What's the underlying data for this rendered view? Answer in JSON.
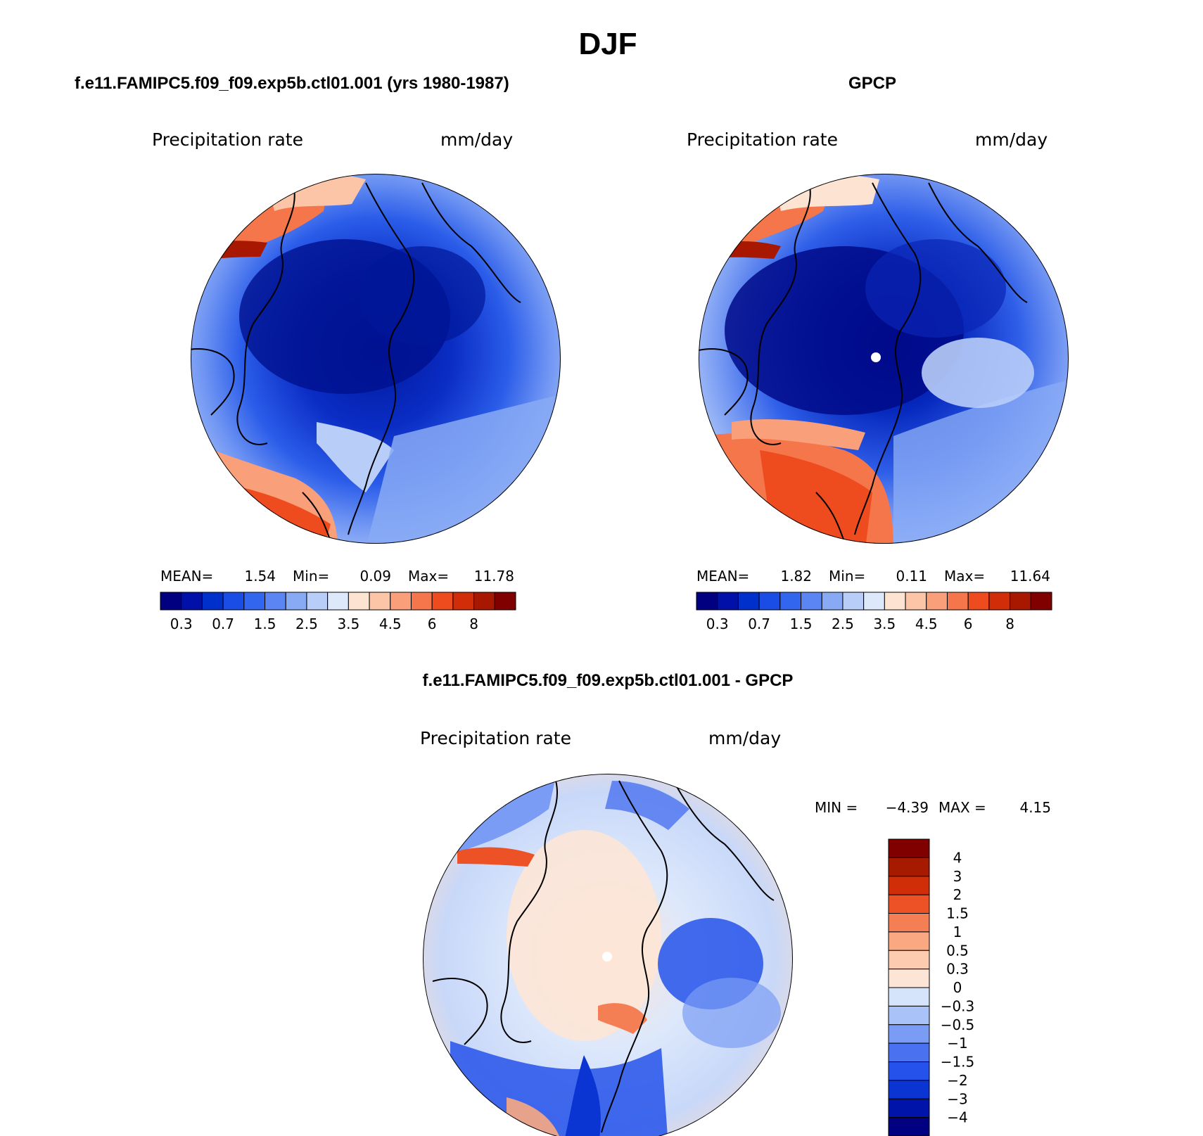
{
  "figure": {
    "title": "DJF"
  },
  "panels": {
    "model": {
      "title": "f.e11.FAMIPC5.f09_f09.exp5b.ctl01.001 (yrs 1980-1987)",
      "variable": "Precipitation rate",
      "units": "mm/day",
      "mean_label": "MEAN=",
      "mean": "1.54",
      "min_label": "Min=",
      "min": "0.09",
      "max_label": "Max=",
      "max": "11.78"
    },
    "obs": {
      "title": "GPCP",
      "variable": "Precipitation rate",
      "units": "mm/day",
      "mean_label": "MEAN=",
      "mean": "1.82",
      "min_label": "Min=",
      "min": "0.11",
      "max_label": "Max=",
      "max": "11.64"
    },
    "diff": {
      "title": "f.e11.FAMIPC5.f09_f09.exp5b.ctl01.001 - GPCP",
      "variable": "Precipitation rate",
      "units": "mm/day",
      "min_label": "MIN =",
      "min": "−4.39",
      "max_label": "MAX =",
      "max": "4.15"
    }
  },
  "chart_data": [
    {
      "type": "heatmap",
      "projection": "north-polar-stereographic",
      "title": "f.e11.FAMIPC5.f09_f09.exp5b.ctl01.001 (yrs 1980-1987)",
      "units": "mm/day",
      "legend_ticks": [
        "0.3",
        "0.7",
        "1.5",
        "2.5",
        "3.5",
        "4.5",
        "6",
        "8"
      ],
      "levels": [
        0.2,
        0.3,
        0.5,
        0.7,
        1,
        1.5,
        2,
        2.5,
        3,
        3.5,
        4,
        4.5,
        5,
        6,
        7,
        8
      ],
      "colors": [
        "#000080",
        "#0010a8",
        "#0030cc",
        "#1a4de6",
        "#3366ee",
        "#5a85f2",
        "#88aaf5",
        "#b8cdf8",
        "#dde8fb",
        "#fde3d2",
        "#fcc5a8",
        "#f9a07a",
        "#f5764a",
        "#ee4b1e",
        "#d02d08",
        "#a81800",
        "#800000"
      ],
      "mean": 1.54,
      "min": 0.09,
      "max": 11.78
    },
    {
      "type": "heatmap",
      "projection": "north-polar-stereographic",
      "title": "GPCP",
      "units": "mm/day",
      "legend_ticks": [
        "0.3",
        "0.7",
        "1.5",
        "2.5",
        "3.5",
        "4.5",
        "6",
        "8"
      ],
      "levels": [
        0.2,
        0.3,
        0.5,
        0.7,
        1,
        1.5,
        2,
        2.5,
        3,
        3.5,
        4,
        4.5,
        5,
        6,
        7,
        8
      ],
      "colors": [
        "#000080",
        "#0010a8",
        "#0030cc",
        "#1a4de6",
        "#3366ee",
        "#5a85f2",
        "#88aaf5",
        "#b8cdf8",
        "#dde8fb",
        "#fde3d2",
        "#fcc5a8",
        "#f9a07a",
        "#f5764a",
        "#ee4b1e",
        "#d02d08",
        "#a81800",
        "#800000"
      ],
      "mean": 1.82,
      "min": 0.11,
      "max": 11.64
    },
    {
      "type": "heatmap",
      "projection": "north-polar-stereographic",
      "title": "f.e11.FAMIPC5.f09_f09.exp5b.ctl01.001 - GPCP",
      "units": "mm/day",
      "legend_ticks": [
        "4",
        "3",
        "2",
        "1.5",
        "1",
        "0.5",
        "0.3",
        "0",
        "−0.3",
        "−0.5",
        "−1",
        "−1.5",
        "−2",
        "−3",
        "−4"
      ],
      "levels": [
        -4,
        -3,
        -2,
        -1.5,
        -1,
        -0.5,
        -0.3,
        0,
        0.3,
        0.5,
        1,
        1.5,
        2,
        3,
        4
      ],
      "colors": [
        "#000080",
        "#0014aa",
        "#0a35d2",
        "#2452ea",
        "#4a72f0",
        "#7a9cf4",
        "#a9c2f7",
        "#d5e3fb",
        "#fde5d6",
        "#fccbb0",
        "#f9a882",
        "#f47f55",
        "#ec5226",
        "#cf2e08",
        "#a61a00",
        "#800000"
      ],
      "min": -4.39,
      "max": 4.15
    }
  ]
}
